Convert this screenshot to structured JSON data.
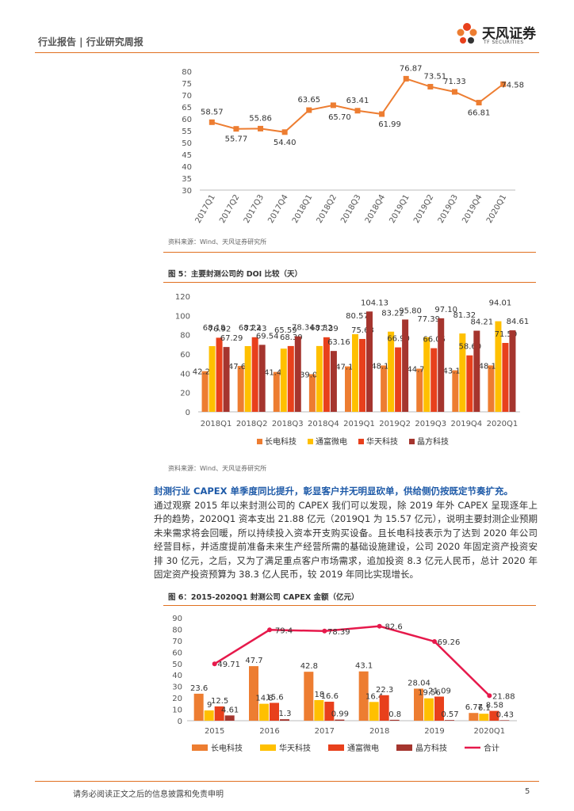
{
  "header": {
    "title": "行业报告 | 行业研究周报",
    "logo_cn": "天风证券",
    "logo_en": "TF SECURITIES"
  },
  "colors": {
    "orange": "#ED7D31",
    "yellow": "#FFC000",
    "red": "#E8401C",
    "darkred": "#A5352E",
    "pink": "#E6194B",
    "accent": "#E07020",
    "blue": "#1E5AA8"
  },
  "chart1": {
    "source": "资料来源：Wind、天风证券研究所"
  },
  "chart2": {
    "title": "图 5：主要封测公司的 DOI 比较（天）",
    "source": "资料来源：Wind、天风证券研究所"
  },
  "paragraph": {
    "highlight": "封测行业 CAPEX 单季度同比提升，彰显客户并无明显砍单，供给侧仍按既定节奏扩充。",
    "text": "通过观察 2015 年以来封测公司的 CAPEX 我们可以发现，除 2019 年外 CAPEX 呈现逐年上升的趋势，2020Q1 资本支出 21.88 亿元（2019Q1 为 15.57 亿元），说明主要封测企业预期未来需求将会回暖，所以持续投入资本开支购买设备。且长电科技表示为了达到 2020 年公司经营目标，并适度提前准备未来生产经营所需的基础设施建设，公司 2020 年固定资产投资安排 30 亿元，之后，又为了满足重点客户市场需求，追加投资 8.3 亿元人民币，总计 2020 年固定资产投资预算为 38.3 亿人民币，较 2019 年同比实现增长。"
  },
  "chart3": {
    "title": "图 6：2015-2020Q1 封测公司 CAPEX 金额（亿元）"
  },
  "footer": {
    "disclaimer": "请务必阅读正文之后的信息披露和免责申明",
    "page": "5"
  },
  "chart_data": [
    {
      "type": "line",
      "title": "",
      "categories": [
        "2017Q1",
        "2017Q2",
        "2017Q3",
        "2017Q4",
        "2018Q1",
        "2018Q2",
        "2018Q3",
        "2018Q4",
        "2019Q1",
        "2019Q2",
        "2019Q3",
        "2019Q4",
        "2020Q1"
      ],
      "values": [
        58.57,
        55.77,
        55.86,
        54.4,
        63.65,
        65.7,
        63.41,
        61.99,
        76.87,
        73.51,
        71.33,
        66.81,
        74.58
      ],
      "value_labels": [
        "58.57",
        "55.77",
        "55.86",
        "54.40",
        "63.65",
        "65.70",
        "63.41",
        "61.99",
        "76.87",
        "73.51",
        "71.33",
        "66.81",
        "74.58"
      ],
      "yticks": [
        "30",
        "35",
        "40",
        "45",
        "50",
        "55",
        "60",
        "65",
        "70",
        "75",
        "80"
      ],
      "ylim": [
        30,
        80
      ]
    },
    {
      "type": "bar",
      "categories": [
        "2018Q1",
        "2018Q2",
        "2018Q3",
        "2018Q4",
        "2019Q1",
        "2019Q2",
        "2019Q3",
        "2019Q4",
        "2020Q1"
      ],
      "series": [
        {
          "name": "长电科技",
          "values": [
            42.2,
            47.6,
            41.41,
            39.07,
            47.15,
            48.12,
            44.78,
            43.11,
            48.19
          ]
        },
        {
          "name": "通富微电",
          "values": [
            68.18,
            68.22,
            65.59,
            68.32,
            80.57,
            83.22,
            77.39,
            81.32,
            94.01
          ]
        },
        {
          "name": "华天科技",
          "values": [
            76.92,
            77.43,
            68.3,
            77.39,
            75.63,
            66.9,
            66.05,
            58.6,
            71.5
          ]
        },
        {
          "name": "晶方科技",
          "values": [
            67.29,
            69.54,
            78.34,
            63.16,
            104.13,
            95.8,
            97.1,
            84.21,
            84.61
          ]
        }
      ],
      "value_labels": [
        [
          "42.20",
          "47.60",
          "41.41",
          "39.07",
          "47.15",
          "48.12",
          "44.78",
          "43.11",
          "48.19"
        ],
        [
          "68.18",
          "68.22",
          "65.59",
          "68.32",
          "80.57",
          "83.22",
          "77.39",
          "81.32",
          "94.01"
        ],
        [
          "76.92",
          "77.43",
          "68.30",
          "77.39",
          "75.63",
          "66.90",
          "66.05",
          "58.60",
          "71.50"
        ],
        [
          "67.29",
          "69.54",
          "78.34",
          "63.16",
          "104.13",
          "95.80",
          "97.10",
          "84.21",
          "84.61"
        ]
      ],
      "yticks": [
        "0",
        "20",
        "40",
        "60",
        "80",
        "100",
        "120"
      ],
      "ylim": [
        0,
        120
      ],
      "legend": "bottom"
    },
    {
      "type": "bar",
      "categories": [
        "2015",
        "2016",
        "2017",
        "2018",
        "2019",
        "2020Q1"
      ],
      "series": [
        {
          "name": "长电科技",
          "values": [
            23.6,
            47.7,
            42.8,
            43.1,
            28.04,
            6.77
          ]
        },
        {
          "name": "华天科技",
          "values": [
            9,
            14.8,
            18,
            16.4,
            19.56,
            6.1
          ]
        },
        {
          "name": "通富微电",
          "values": [
            12.5,
            15.6,
            16.6,
            22.3,
            21.09,
            8.58
          ]
        },
        {
          "name": "晶方科技",
          "values": [
            4.61,
            1.3,
            0.99,
            0.8,
            0.57,
            0.43
          ]
        }
      ],
      "value_labels": [
        [
          "23.6",
          "47.7",
          "42.8",
          "43.1",
          "28.04",
          "6.77"
        ],
        [
          "9",
          "14.8",
          "18",
          "16.4",
          "19.56",
          "6.1"
        ],
        [
          "12.5",
          "15.6",
          "16.6",
          "22.3",
          "21.09",
          "8.58"
        ],
        [
          "4.61",
          "1.3",
          "0.99",
          "0.8",
          "0.57",
          "0.43"
        ]
      ],
      "line": {
        "name": "合计",
        "values": [
          49.71,
          79.4,
          78.39,
          82.6,
          69.26,
          21.88
        ],
        "labels": [
          "49.71",
          "79.4",
          "78.39",
          "82.6",
          "69.26",
          "21.88"
        ]
      },
      "yticks": [
        "0",
        "10",
        "20",
        "30",
        "40",
        "50",
        "60",
        "70",
        "80",
        "90"
      ],
      "ylim": [
        0,
        90
      ],
      "legend": "bottom"
    }
  ]
}
